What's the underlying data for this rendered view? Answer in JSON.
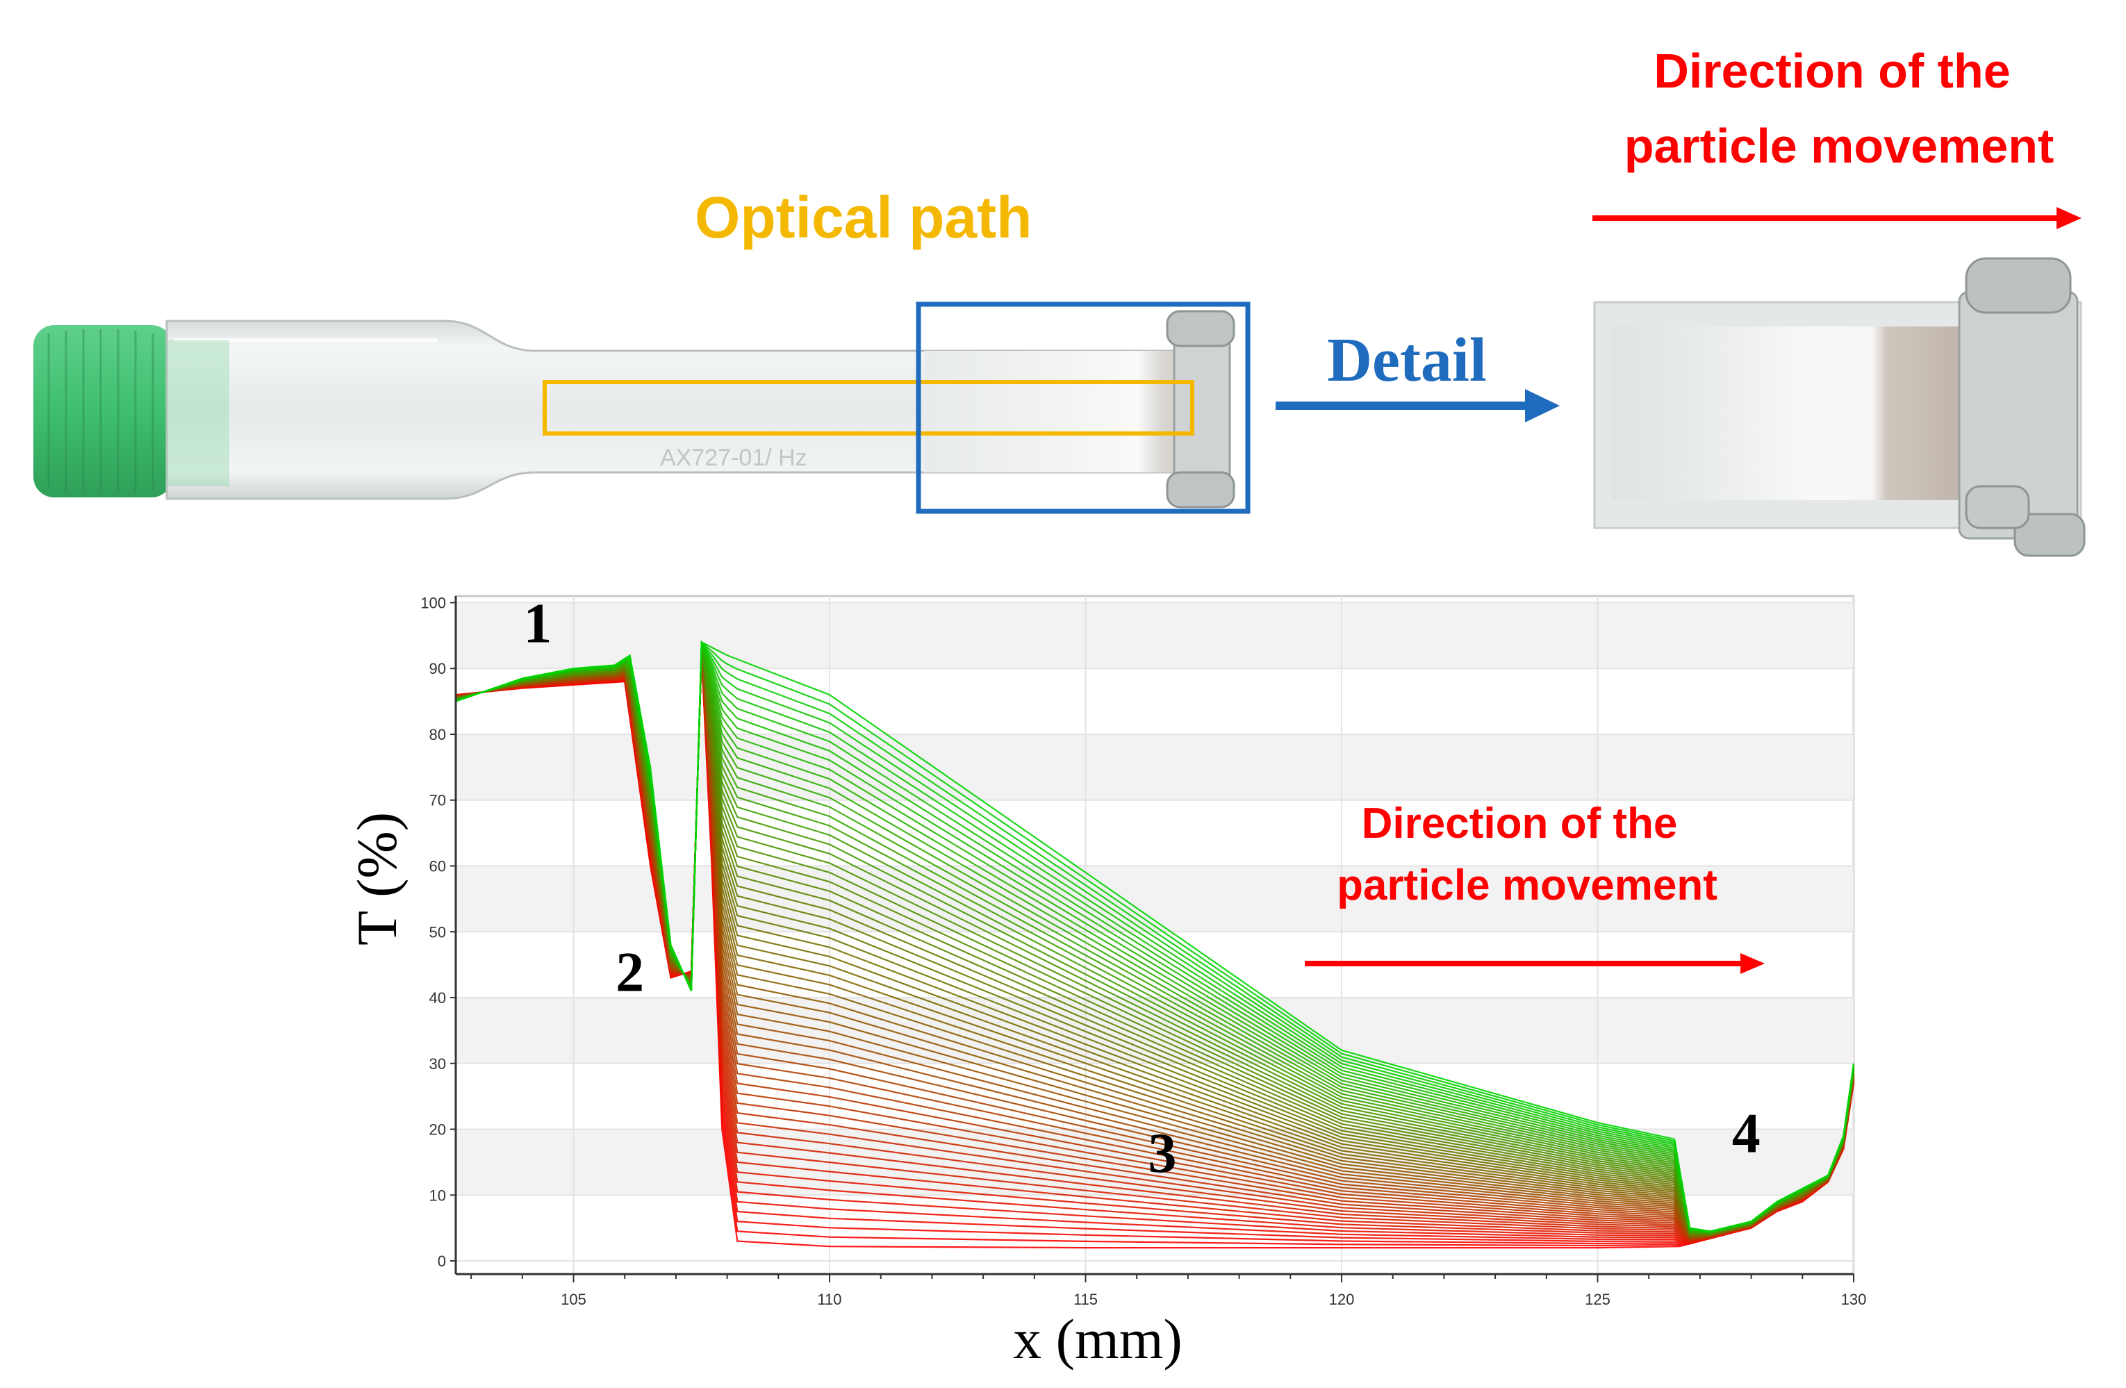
{
  "photo_top": {
    "optical_path_label": "Optical path",
    "detail_label": "Detail",
    "direction_label_line1": "Direction of the",
    "direction_label_line2": "particle movement",
    "tube_embossed_text": "AX727-01/ Hz"
  },
  "chart_data": {
    "type": "line",
    "xlabel": "x (mm)",
    "ylabel": "T (%)",
    "xlim": [
      102.7,
      130
    ],
    "ylim": [
      -2,
      101
    ],
    "x_ticks": [
      105,
      110,
      115,
      120,
      125,
      130
    ],
    "y_ticks": [
      0,
      10,
      20,
      30,
      40,
      50,
      60,
      70,
      80,
      90,
      100
    ],
    "grid": true,
    "annotation": {
      "line1": "Direction of the",
      "line2": "particle movement"
    },
    "region_labels": [
      {
        "text": "1",
        "x": 104.3,
        "y": 94
      },
      {
        "text": "2",
        "x": 106.1,
        "y": 41
      },
      {
        "text": "3",
        "x": 116.5,
        "y": 13.5
      },
      {
        "text": "4",
        "x": 127.9,
        "y": 16.5
      }
    ],
    "series_count": 60,
    "color_gradient": [
      "#ff0000",
      "#00d400"
    ],
    "series_envelope": {
      "first": {
        "x": [
          102.7,
          104,
          105,
          106,
          106.5,
          106.9,
          107.3,
          107.5,
          107.7,
          107.9,
          108.2,
          110,
          115,
          120,
          125,
          126.6,
          127,
          128,
          128.5,
          129,
          129.5,
          129.8,
          130
        ],
        "y": [
          86,
          87,
          87.5,
          88,
          60,
          43,
          44,
          92,
          60,
          20,
          3,
          2.2,
          2,
          2,
          2,
          2.2,
          3,
          5,
          7.5,
          9,
          12,
          17,
          27
        ]
      },
      "last": {
        "x": [
          102.7,
          104,
          105,
          105.8,
          106.1,
          106.5,
          106.9,
          107.3,
          107.5,
          108,
          110,
          115,
          120,
          125,
          126.5,
          126.8,
          127.2,
          128,
          128.5,
          129,
          129.5,
          129.8,
          130
        ],
        "y": [
          85,
          88.5,
          90,
          90.5,
          92,
          75,
          48,
          41,
          94,
          92,
          86,
          59,
          32,
          21,
          18.5,
          5,
          4.5,
          6,
          9,
          11,
          13,
          19,
          30
        ]
      }
    }
  }
}
